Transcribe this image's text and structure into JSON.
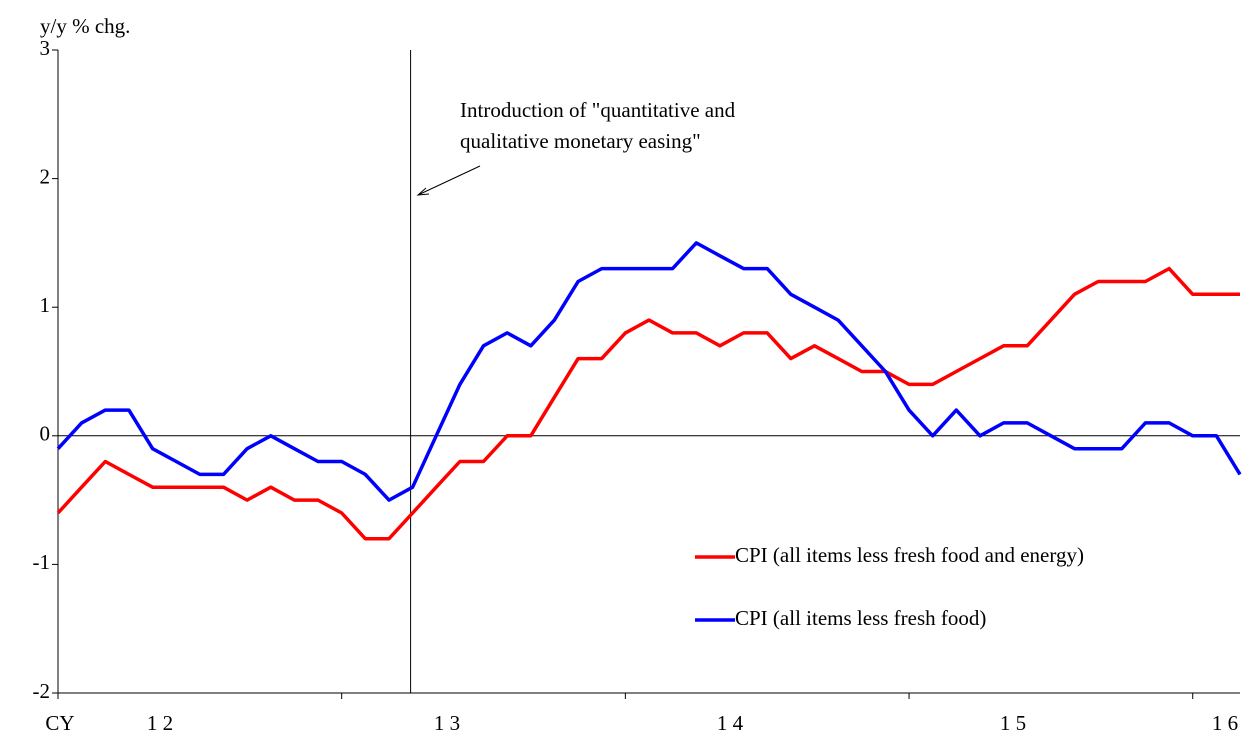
{
  "chart_data": {
    "type": "line",
    "y_label": "y/y % chg.",
    "x_labels": [
      "CY",
      "1 2",
      "1 3",
      "1 4",
      "1 5",
      "1 6"
    ],
    "annotation": [
      "Introduction of \"quantitative and",
      "qualitative monetary easing\""
    ],
    "categories": [
      null,
      null,
      null,
      null,
      null,
      null,
      null,
      null,
      null,
      null,
      null,
      null,
      null,
      null,
      null,
      null,
      null,
      null,
      null,
      null,
      null,
      null,
      null,
      null,
      null,
      null,
      null,
      null,
      null,
      null,
      null,
      null,
      null,
      null,
      null,
      null,
      null,
      null,
      null,
      null,
      null,
      null,
      null,
      null,
      null,
      null,
      null,
      null,
      null,
      null,
      null
    ],
    "series": [
      {
        "name": "CPI (all items less fresh food and energy)",
        "color": "#ff0000",
        "values": [
          -0.6,
          -0.4,
          -0.2,
          -0.3,
          -0.4,
          -0.4,
          -0.4,
          -0.4,
          -0.5,
          -0.4,
          -0.5,
          -0.5,
          -0.6,
          -0.8,
          -0.8,
          -0.6,
          -0.4,
          -0.2,
          -0.2,
          0,
          0,
          0.3,
          0.6,
          0.6,
          0.8,
          0.9,
          0.8,
          0.8,
          0.7,
          0.8,
          0.8,
          0.6,
          0.7,
          0.6,
          0.5,
          0.5,
          0.4,
          0.4,
          0.5,
          0.6,
          0.7,
          0.7,
          0.9,
          1.1,
          1.2,
          1.2,
          1.2,
          1.3,
          1.1,
          1.1,
          1.1
        ]
      },
      {
        "name": "CPI (all items less fresh food)",
        "color": "#0000ff",
        "values": [
          -0.1,
          0.1,
          0.2,
          0.2,
          -0.1,
          -0.2,
          -0.3,
          -0.3,
          -0.1,
          0,
          -0.1,
          -0.2,
          -0.2,
          -0.3,
          -0.5,
          -0.4,
          0,
          0.4,
          0.7,
          0.8,
          0.7,
          0.9,
          1.2,
          1.3,
          1.3,
          1.3,
          1.3,
          1.5,
          1.4,
          1.3,
          1.3,
          1.1,
          1.0,
          0.9,
          0.7,
          0.5,
          0.2,
          0,
          0.2,
          0,
          0.1,
          0.1,
          0,
          -0.1,
          -0.1,
          -0.1,
          0.1,
          0.1,
          0,
          0,
          -0.3
        ]
      }
    ],
    "ylim": [
      -2,
      3
    ],
    "yticks": [
      -2,
      -1,
      0,
      1,
      2,
      3
    ]
  }
}
